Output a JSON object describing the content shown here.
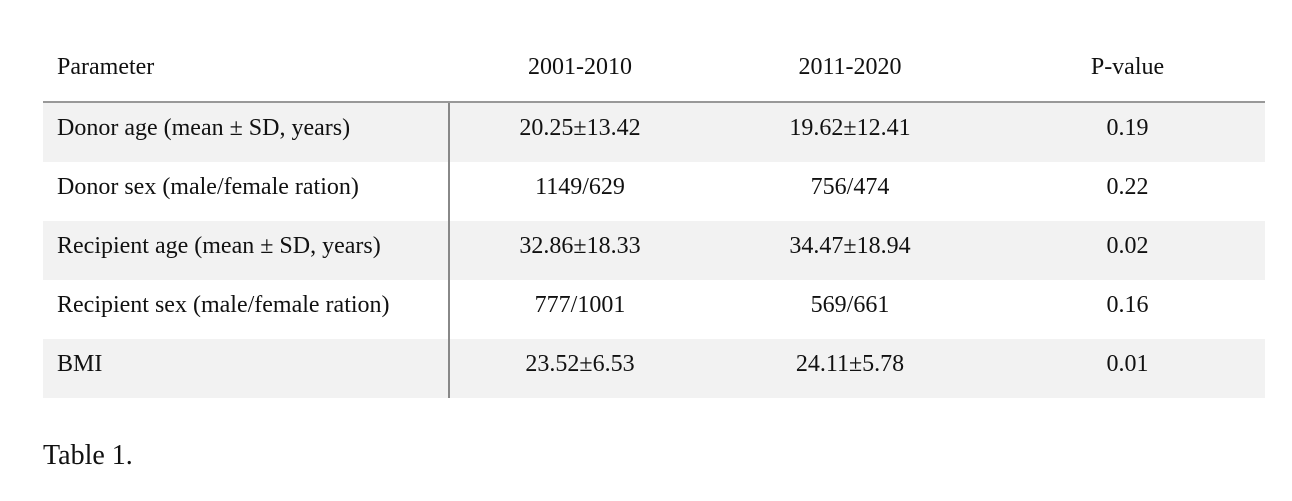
{
  "table": {
    "header": [
      "Parameter",
      "2001-2010",
      "2011-2020",
      "P-value"
    ],
    "rows": [
      [
        "Donor age (mean ± SD, years)",
        "20.25±13.42",
        "19.62±12.41",
        "0.19"
      ],
      [
        "Donor sex (male/female ration)",
        "1149/629",
        "756/474",
        "0.22"
      ],
      [
        "Recipient age (mean ± SD, years)",
        "32.86±18.33",
        "34.47±18.94",
        "0.02"
      ],
      [
        "Recipient sex (male/female ration)",
        "777/1001",
        "569/661",
        "0.16"
      ],
      [
        "BMI",
        "23.52±6.53",
        "24.11±5.78",
        "0.01"
      ]
    ]
  },
  "caption": "Table 1."
}
